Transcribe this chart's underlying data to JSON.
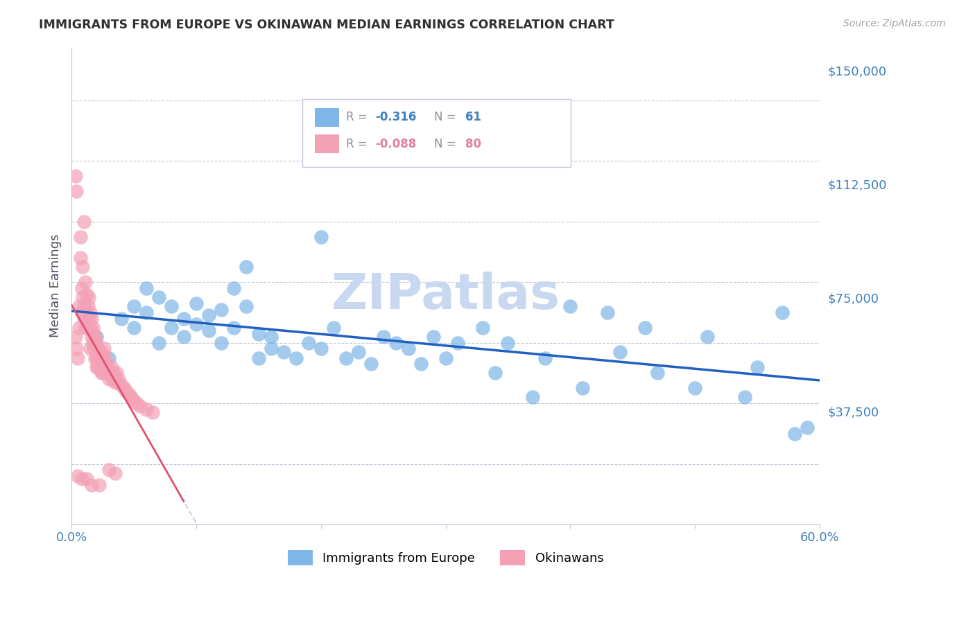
{
  "title": "IMMIGRANTS FROM EUROPE VS OKINAWAN MEDIAN EARNINGS CORRELATION CHART",
  "source": "Source: ZipAtlas.com",
  "ylabel": "Median Earnings",
  "legend_label1": "Immigrants from Europe",
  "legend_label2": "Okinawans",
  "r1": "-0.316",
  "n1": "61",
  "r2": "-0.088",
  "n2": "80",
  "xlim": [
    0.0,
    0.6
  ],
  "ylim": [
    0,
    157500
  ],
  "yticks": [
    0,
    37500,
    75000,
    112500,
    150000
  ],
  "ytick_labels": [
    "",
    "$37,500",
    "$75,000",
    "$112,500",
    "$150,000"
  ],
  "xticks": [
    0.0,
    0.1,
    0.2,
    0.3,
    0.4,
    0.5,
    0.6
  ],
  "xtick_labels": [
    "0.0%",
    "",
    "",
    "",
    "",
    "",
    "60.0%"
  ],
  "color_blue": "#7EB6E8",
  "color_pink": "#F4A0B5",
  "color_blue_line": "#2060C0",
  "color_pink_line": "#E05070",
  "color_pink_line_ext": "#D4A0B0",
  "watermark_color": "#C8D8F0",
  "axis_color": "#C0C8D8",
  "title_color": "#303030",
  "source_color": "#A0A0A0",
  "ylabel_color": "#505060",
  "ytick_color": "#4080C0",
  "background_color": "#FFFFFF",
  "blue_points_x": [
    0.02,
    0.03,
    0.04,
    0.05,
    0.05,
    0.06,
    0.06,
    0.07,
    0.07,
    0.08,
    0.08,
    0.09,
    0.09,
    0.1,
    0.1,
    0.11,
    0.11,
    0.12,
    0.12,
    0.13,
    0.13,
    0.14,
    0.14,
    0.15,
    0.15,
    0.16,
    0.16,
    0.17,
    0.18,
    0.19,
    0.2,
    0.2,
    0.21,
    0.22,
    0.23,
    0.24,
    0.25,
    0.26,
    0.27,
    0.28,
    0.29,
    0.3,
    0.31,
    0.33,
    0.34,
    0.35,
    0.37,
    0.38,
    0.4,
    0.41,
    0.43,
    0.44,
    0.46,
    0.47,
    0.5,
    0.51,
    0.54,
    0.55,
    0.57,
    0.58,
    0.59
  ],
  "blue_points_y": [
    62000,
    55000,
    68000,
    72000,
    65000,
    78000,
    70000,
    75000,
    60000,
    72000,
    65000,
    68000,
    62000,
    73000,
    66000,
    69000,
    64000,
    71000,
    60000,
    65000,
    78000,
    72000,
    85000,
    63000,
    55000,
    58000,
    62000,
    57000,
    55000,
    60000,
    95000,
    58000,
    65000,
    55000,
    57000,
    53000,
    62000,
    60000,
    58000,
    53000,
    62000,
    55000,
    60000,
    65000,
    50000,
    60000,
    42000,
    55000,
    72000,
    45000,
    70000,
    57000,
    65000,
    50000,
    45000,
    62000,
    42000,
    52000,
    70000,
    30000,
    32000
  ],
  "pink_points_x": [
    0.003,
    0.004,
    0.005,
    0.006,
    0.006,
    0.007,
    0.007,
    0.008,
    0.008,
    0.009,
    0.009,
    0.01,
    0.01,
    0.011,
    0.011,
    0.012,
    0.012,
    0.013,
    0.013,
    0.014,
    0.014,
    0.015,
    0.015,
    0.016,
    0.016,
    0.017,
    0.017,
    0.018,
    0.018,
    0.019,
    0.019,
    0.02,
    0.02,
    0.021,
    0.021,
    0.022,
    0.022,
    0.023,
    0.023,
    0.024,
    0.024,
    0.025,
    0.025,
    0.026,
    0.026,
    0.027,
    0.028,
    0.029,
    0.03,
    0.031,
    0.032,
    0.033,
    0.034,
    0.035,
    0.036,
    0.037,
    0.038,
    0.04,
    0.042,
    0.044,
    0.046,
    0.048,
    0.05,
    0.052,
    0.055,
    0.06,
    0.065,
    0.003,
    0.004,
    0.01,
    0.015,
    0.02,
    0.025,
    0.03,
    0.035,
    0.005,
    0.008,
    0.012,
    0.016,
    0.022
  ],
  "pink_points_y": [
    62000,
    58000,
    55000,
    72000,
    65000,
    95000,
    88000,
    78000,
    70000,
    85000,
    75000,
    72000,
    68000,
    80000,
    65000,
    76000,
    70000,
    72000,
    65000,
    68000,
    75000,
    70000,
    65000,
    68000,
    62000,
    65000,
    60000,
    63000,
    58000,
    62000,
    55000,
    60000,
    55000,
    58000,
    52000,
    57000,
    55000,
    55000,
    52000,
    57000,
    50000,
    55000,
    52000,
    58000,
    53000,
    55000,
    50000,
    52000,
    48000,
    50000,
    52000,
    48000,
    50000,
    47000,
    50000,
    47000,
    48000,
    46000,
    45000,
    44000,
    43000,
    42000,
    41000,
    40000,
    39000,
    38000,
    37000,
    115000,
    110000,
    100000,
    58000,
    52000,
    50000,
    18000,
    17000,
    16000,
    15000,
    15000,
    13000,
    13000
  ]
}
